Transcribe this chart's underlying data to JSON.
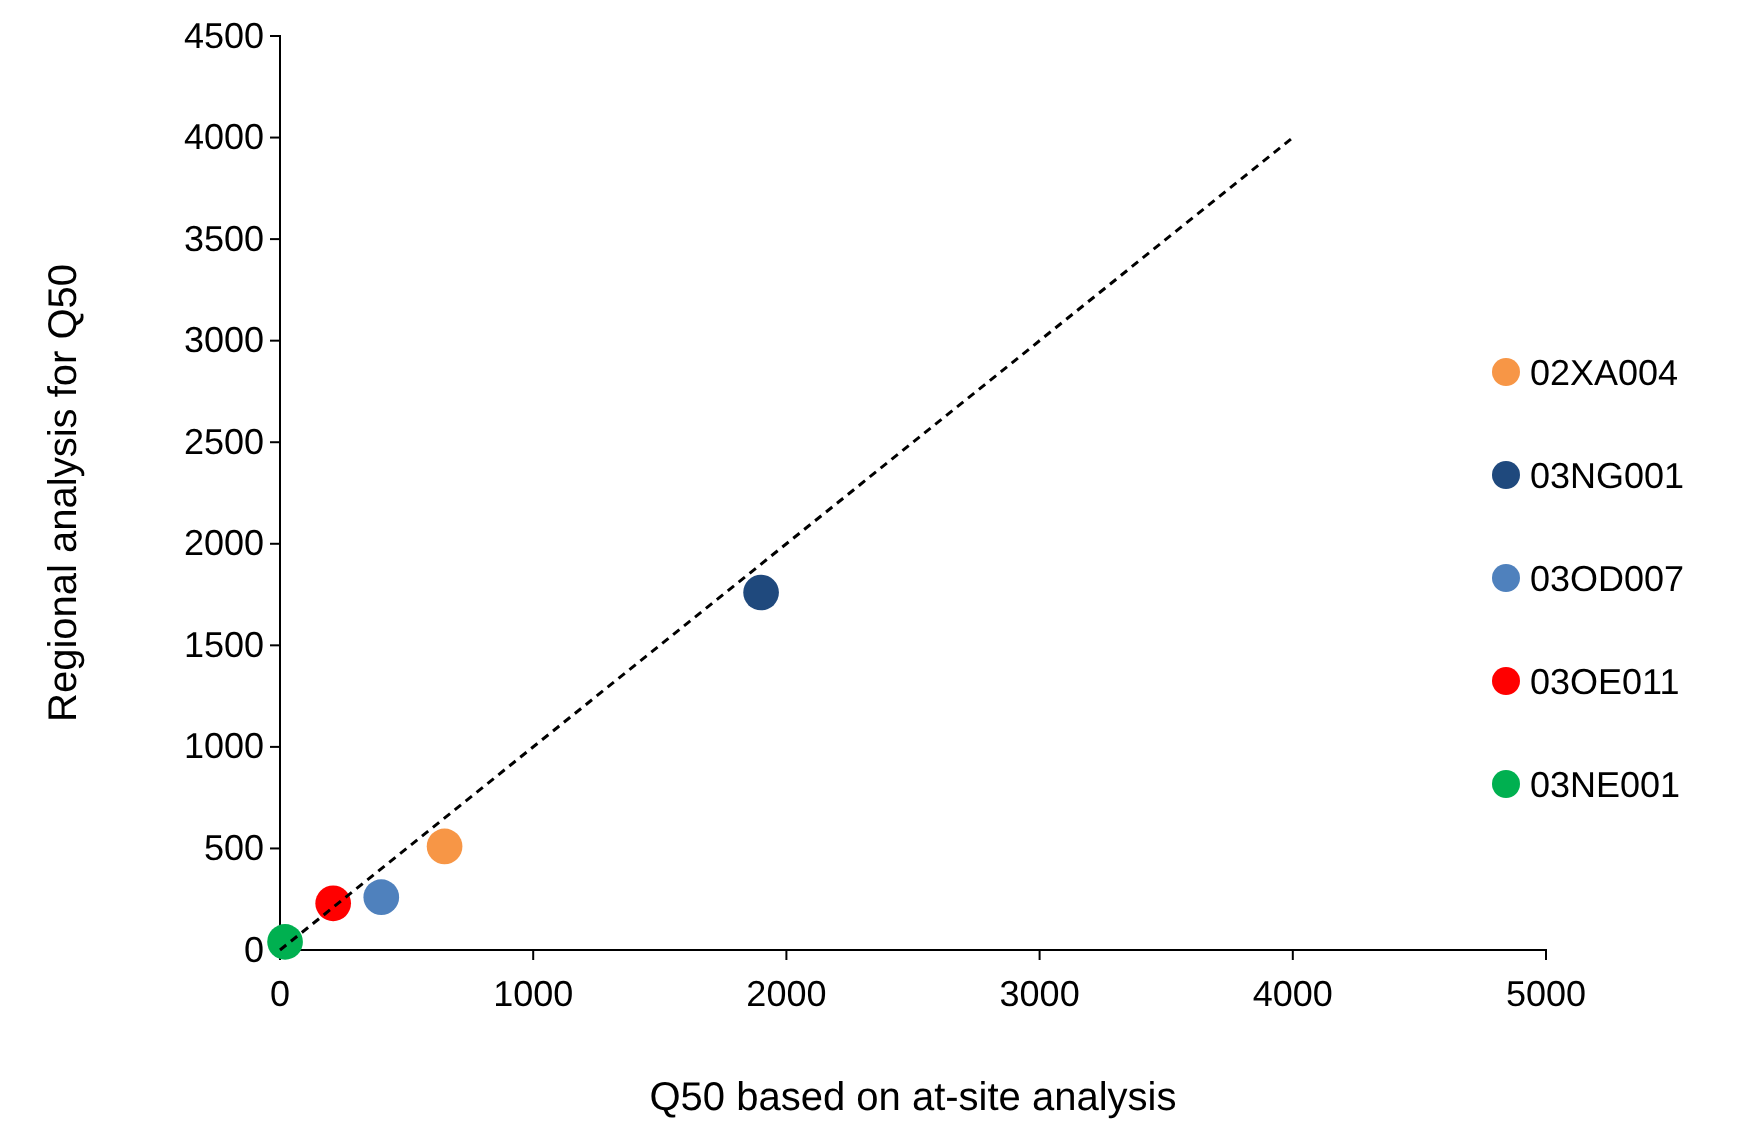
{
  "chart_data": {
    "type": "scatter",
    "xlabel": "Q50 based on at-site analysis",
    "ylabel": "Regional analysis for Q50",
    "xlim": [
      0,
      5000
    ],
    "xticks": [
      0,
      1000,
      2000,
      3000,
      4000,
      5000
    ],
    "ylim": [
      0,
      4500
    ],
    "yticks": [
      0,
      500,
      1000,
      1500,
      2000,
      2500,
      3000,
      3500,
      4000,
      4500
    ],
    "marker": "circle",
    "legend": "right",
    "grid": false,
    "series": [
      {
        "type": "line",
        "color": "#000000",
        "line_style": "dashed",
        "marker": "none",
        "x": [
          0,
          4000
        ],
        "values": [
          0,
          4000
        ]
      },
      {
        "name": "02XA004",
        "color": "#f79646",
        "x": [
          650
        ],
        "values": [
          510
        ]
      },
      {
        "name": "03NG001",
        "color": "#1f497d",
        "x": [
          1900
        ],
        "values": [
          1760
        ]
      },
      {
        "name": "03OD007",
        "color": "#4f81bd",
        "x": [
          400
        ],
        "values": [
          260
        ]
      },
      {
        "name": "03OE011",
        "color": "#ff0000",
        "x": [
          210
        ],
        "values": [
          230
        ]
      },
      {
        "name": "03NE001",
        "color": "#00b050",
        "x": [
          20
        ],
        "values": [
          40
        ]
      }
    ]
  }
}
